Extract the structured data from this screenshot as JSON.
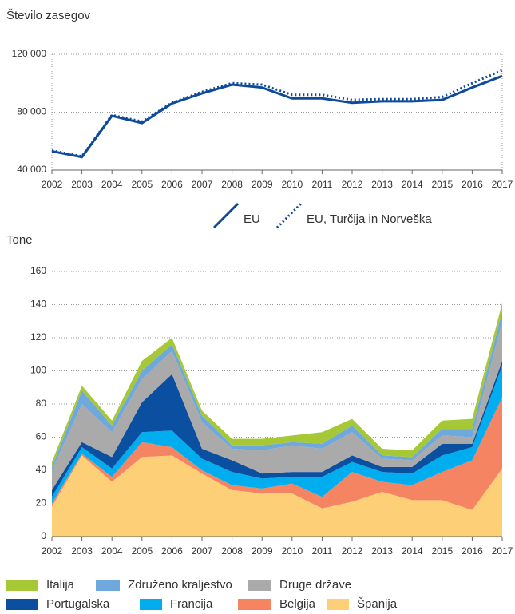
{
  "chart_data": [
    {
      "type": "line",
      "title": "Število zasegov",
      "categories": [
        "2002",
        "2003",
        "2004",
        "2005",
        "2006",
        "2007",
        "2008",
        "2009",
        "2010",
        "2011",
        "2012",
        "2013",
        "2014",
        "2015",
        "2016",
        "2017"
      ],
      "ylim": [
        40000,
        120000
      ],
      "yticks": [
        {
          "value": 40000,
          "label": "40 000"
        },
        {
          "value": 80000,
          "label": "80 000"
        },
        {
          "value": 120000,
          "label": "120 000"
        }
      ],
      "grid": true,
      "series": [
        {
          "name": "EU",
          "color": "#0d4a9c",
          "dash": "solid",
          "values": [
            53000,
            49000,
            77500,
            72500,
            86000,
            93000,
            99000,
            97000,
            89500,
            89500,
            86500,
            87500,
            87500,
            88500,
            97000,
            105000
          ]
        },
        {
          "name": "EU, Turčija in Norveška",
          "color": "#0d4a9c",
          "dash": "dotted",
          "values": [
            53500,
            49500,
            78000,
            73500,
            86500,
            94000,
            100000,
            99000,
            92000,
            92000,
            88500,
            89000,
            89000,
            90500,
            100000,
            109000
          ]
        }
      ]
    },
    {
      "type": "stacked_area",
      "title": "Tone",
      "categories": [
        "2002",
        "2003",
        "2004",
        "2005",
        "2006",
        "2007",
        "2008",
        "2009",
        "2010",
        "2011",
        "2012",
        "2013",
        "2014",
        "2015",
        "2016",
        "2017"
      ],
      "ylim": [
        0,
        160
      ],
      "yticks": [
        0,
        20,
        40,
        60,
        80,
        100,
        120,
        140,
        160
      ],
      "grid": true,
      "series": [
        {
          "name": "Italija",
          "color": "#a6c837",
          "values": [
            3,
            3,
            3,
            6,
            4,
            3,
            4,
            4,
            4,
            7,
            4,
            4,
            4,
            5,
            6,
            5
          ]
        },
        {
          "name": "Združeno kraljestvo",
          "color": "#6fa8dc",
          "values": [
            2,
            8,
            4,
            5,
            4,
            4,
            2,
            3,
            2,
            3,
            4,
            2,
            2,
            4,
            5,
            6
          ]
        },
        {
          "name": "Druge države",
          "color": "#aaaaaa",
          "values": [
            12,
            23,
            15,
            14,
            14,
            16,
            7,
            14,
            16,
            14,
            14,
            5,
            4,
            5,
            4,
            24
          ]
        },
        {
          "name": "Portugalska",
          "color": "#0a4fa0",
          "values": [
            4,
            3,
            7,
            18,
            34,
            6,
            7,
            3,
            3,
            3,
            4,
            3,
            4,
            7,
            2,
            3
          ]
        },
        {
          "name": "Francija",
          "color": "#00aeef",
          "values": [
            4,
            4,
            5,
            6,
            10,
            7,
            8,
            6,
            4,
            12,
            6,
            6,
            7,
            10,
            8,
            19
          ]
        },
        {
          "name": "Belgija",
          "color": "#f58462",
          "values": [
            2,
            1,
            3,
            9,
            5,
            2,
            3,
            3,
            6,
            7,
            18,
            6,
            9,
            17,
            30,
            43
          ]
        },
        {
          "name": "Španija",
          "color": "#fdd077",
          "values": [
            18,
            49,
            33,
            48,
            49,
            38,
            28,
            26,
            26,
            17,
            21,
            27,
            22,
            22,
            16,
            41
          ]
        }
      ]
    }
  ]
}
